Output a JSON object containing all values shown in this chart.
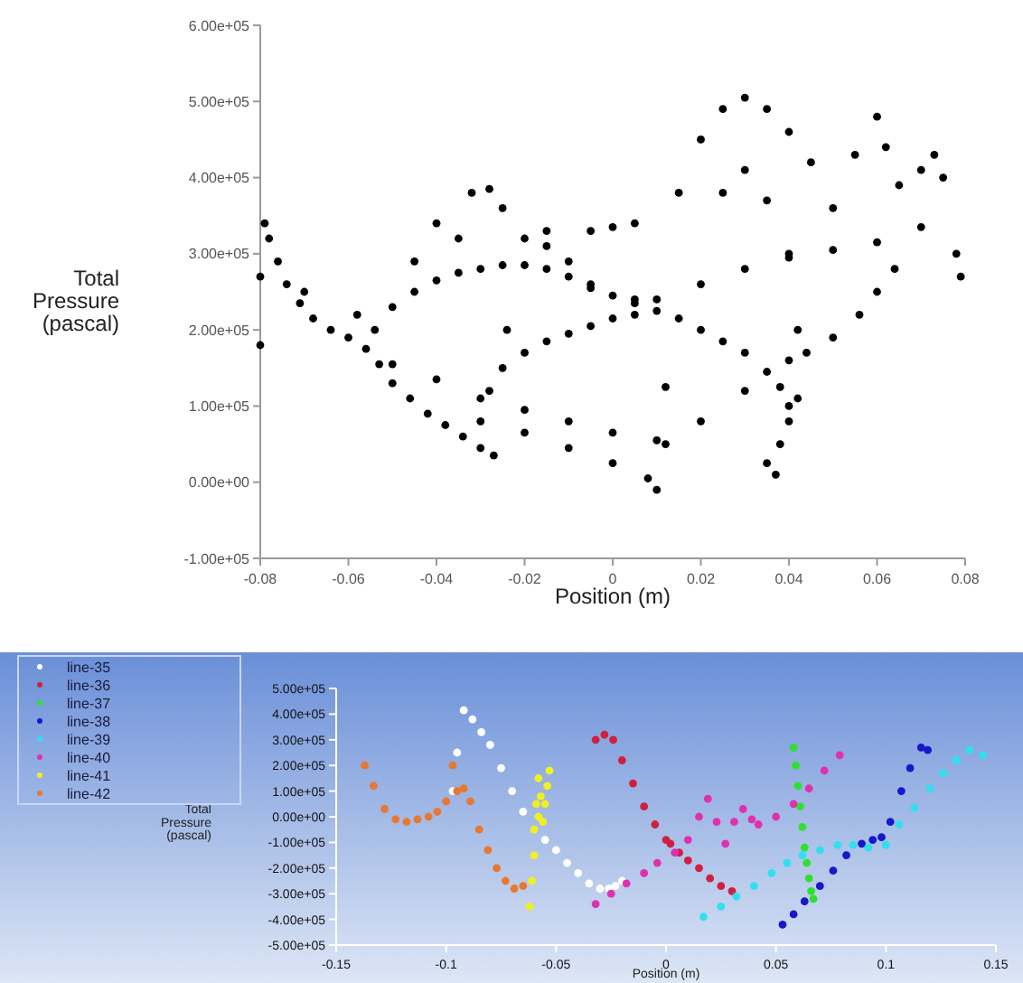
{
  "chart_data": [
    {
      "type": "scatter",
      "xlabel": "Position (m)",
      "ylabel": "Total Pressure (pascal)",
      "xlim": [
        -0.08,
        0.08
      ],
      "xticks": [
        -0.08,
        -0.06,
        -0.04,
        -0.02,
        0,
        0.02,
        0.04,
        0.06,
        0.08
      ],
      "ylim": [
        -100000,
        600000
      ],
      "yticks": [
        {
          "value": -100000,
          "label": "-1.00e+05"
        },
        {
          "value": 0,
          "label": "0.00e+00"
        },
        {
          "value": 100000,
          "label": "1.00e+05"
        },
        {
          "value": 200000,
          "label": "2.00e+05"
        },
        {
          "value": 300000,
          "label": "3.00e+05"
        },
        {
          "value": 400000,
          "label": "4.00e+05"
        },
        {
          "value": 500000,
          "label": "5.00e+05"
        },
        {
          "value": 600000,
          "label": "6.00e+05"
        }
      ],
      "grid": false,
      "legend": false,
      "marker": "circle",
      "series": [
        {
          "color": "#000000",
          "x": [
            -0.08,
            -0.08,
            -0.079,
            -0.078,
            -0.076,
            -0.074,
            -0.071,
            -0.068,
            -0.064,
            -0.06,
            -0.056,
            -0.053,
            -0.05,
            -0.046,
            -0.042,
            -0.038,
            -0.034,
            -0.03,
            -0.027,
            -0.054,
            -0.05,
            -0.045,
            -0.04,
            -0.035,
            -0.03,
            -0.025,
            -0.02,
            -0.015,
            -0.01,
            -0.005,
            0,
            0.005,
            0.01,
            0.015,
            0.02,
            0.025,
            0.03,
            0.035,
            0.038,
            0.04,
            0.04,
            0.038,
            0.037,
            -0.05,
            -0.04,
            -0.03,
            -0.02,
            -0.01,
            0,
            0.01,
            0.012,
            -0.02,
            -0.01,
            0,
            0.008,
            0.01,
            -0.03,
            -0.028,
            -0.025,
            -0.02,
            -0.015,
            -0.01,
            -0.005,
            0,
            0.005,
            0.02,
            0.03,
            0.04,
            0.05,
            0.056,
            0.06,
            0.064,
            0.01,
            0.02,
            0.03,
            0.04,
            0.05,
            0.06,
            0.07,
            0.015,
            0.02,
            0.025,
            0.03,
            0.035,
            0.04,
            0.045,
            0.05,
            0.055,
            0.06,
            0.062,
            0.065,
            0.07,
            0.073,
            0.075,
            0.078,
            0.079,
            0.025,
            0.03,
            0.035,
            0.04,
            0.042,
            0.044,
            -0.045,
            -0.04,
            -0.035,
            -0.032,
            -0.028,
            -0.025,
            -0.02,
            -0.015,
            -0.01,
            -0.005,
            0.005,
            -0.015,
            -0.005,
            0,
            0.005,
            -0.024,
            0.012,
            0.035,
            0.042,
            -0.058,
            -0.07
          ],
          "values": [
            180000,
            270000,
            340000,
            320000,
            290000,
            260000,
            235000,
            215000,
            200000,
            190000,
            175000,
            155000,
            130000,
            110000,
            90000,
            75000,
            60000,
            45000,
            35000,
            200000,
            230000,
            250000,
            265000,
            275000,
            280000,
            285000,
            285000,
            280000,
            270000,
            255000,
            245000,
            235000,
            225000,
            215000,
            200000,
            185000,
            170000,
            145000,
            125000,
            100000,
            80000,
            50000,
            10000,
            155000,
            135000,
            110000,
            95000,
            80000,
            65000,
            55000,
            50000,
            65000,
            45000,
            25000,
            5000,
            -10000,
            80000,
            120000,
            150000,
            170000,
            185000,
            195000,
            205000,
            215000,
            220000,
            80000,
            120000,
            160000,
            190000,
            220000,
            250000,
            280000,
            240000,
            260000,
            280000,
            295000,
            305000,
            315000,
            335000,
            380000,
            450000,
            490000,
            505000,
            490000,
            460000,
            420000,
            360000,
            430000,
            480000,
            440000,
            390000,
            410000,
            430000,
            400000,
            300000,
            270000,
            380000,
            410000,
            370000,
            300000,
            200000,
            170000,
            290000,
            340000,
            320000,
            380000,
            385000,
            360000,
            320000,
            310000,
            290000,
            260000,
            240000,
            330000,
            330000,
            335000,
            340000,
            200000,
            125000,
            25000,
            110000,
            220000,
            250000
          ]
        }
      ]
    },
    {
      "type": "scatter",
      "xlabel": "Position (m)",
      "ylabel": "Total Pressure (pascal)",
      "xlim": [
        -0.15,
        0.15
      ],
      "xticks": [
        -0.15,
        -0.1,
        -0.05,
        0,
        0.05,
        0.1,
        0.15
      ],
      "ylim": [
        -500000,
        500000
      ],
      "yticks": [
        {
          "value": -500000,
          "label": "-5.00e+05"
        },
        {
          "value": -400000,
          "label": "-4.00e+05"
        },
        {
          "value": -300000,
          "label": "-3.00e+05"
        },
        {
          "value": -200000,
          "label": "-2.00e+05"
        },
        {
          "value": -100000,
          "label": "-1.00e+05"
        },
        {
          "value": 0,
          "label": "0.00e+00"
        },
        {
          "value": 100000,
          "label": "1.00e+05"
        },
        {
          "value": 200000,
          "label": "2.00e+05"
        },
        {
          "value": 300000,
          "label": "3.00e+05"
        },
        {
          "value": 400000,
          "label": "4.00e+05"
        },
        {
          "value": 500000,
          "label": "5.00e+05"
        }
      ],
      "grid": false,
      "legend": "top left",
      "marker": "circle",
      "series": [
        {
          "name": "line-35",
          "color": "#ffffff",
          "x": [
            -0.097,
            -0.095,
            -0.092,
            -0.088,
            -0.084,
            -0.08,
            -0.075,
            -0.07,
            -0.065,
            -0.06,
            -0.055,
            -0.05,
            -0.045,
            -0.04,
            -0.035,
            -0.03,
            -0.026,
            -0.023,
            -0.02
          ],
          "values": [
            100000,
            250000,
            415000,
            380000,
            330000,
            280000,
            190000,
            100000,
            20000,
            null,
            -90000,
            -130000,
            -180000,
            -220000,
            -260000,
            -280000,
            -280000,
            -270000,
            -250000
          ]
        },
        {
          "name": "line-36",
          "color": "#d02040",
          "x": [
            -0.032,
            -0.028,
            -0.024,
            -0.02,
            -0.015,
            -0.01,
            -0.005,
            0,
            0.002,
            0.006,
            0.01,
            0.015,
            0.02,
            0.025,
            0.03
          ],
          "values": [
            300000,
            320000,
            300000,
            220000,
            130000,
            40000,
            -30000,
            -90000,
            -105000,
            -140000,
            -170000,
            -200000,
            -240000,
            -270000,
            -290000
          ]
        },
        {
          "name": "line-37",
          "color": "#30e030",
          "x": [
            0.058,
            0.059,
            0.06,
            0.061,
            0.062,
            0.063,
            0.064,
            0.065,
            0.066,
            0.067
          ],
          "values": [
            270000,
            200000,
            120000,
            40000,
            -40000,
            -120000,
            -180000,
            -240000,
            -290000,
            -320000
          ]
        },
        {
          "name": "line-38",
          "color": "#1818c8",
          "x": [
            0.053,
            0.058,
            0.063,
            0.07,
            0.076,
            0.082,
            0.089,
            0.094,
            0.098,
            0.102,
            0.107,
            0.111,
            0.116,
            0.119
          ],
          "values": [
            -420000,
            -380000,
            -330000,
            -270000,
            -210000,
            -150000,
            -105000,
            -90000,
            -80000,
            -20000,
            100000,
            190000,
            270000,
            260000
          ]
        },
        {
          "name": "line-39",
          "color": "#30e0f0",
          "x": [
            0.017,
            0.025,
            0.032,
            0.04,
            0.048,
            0.055,
            0.062,
            0.07,
            0.078,
            0.085,
            0.092,
            0.1,
            0.106,
            0.113,
            0.12,
            0.126,
            0.132,
            0.138,
            0.144
          ],
          "values": [
            -390000,
            -350000,
            -310000,
            -270000,
            -220000,
            -180000,
            -150000,
            -130000,
            -110000,
            -110000,
            -120000,
            -110000,
            -30000,
            35000,
            110000,
            170000,
            220000,
            260000,
            240000
          ]
        },
        {
          "name": "line-40",
          "color": "#e030b0",
          "x": [
            -0.032,
            -0.025,
            -0.018,
            -0.01,
            -0.004,
            0.004,
            0.01,
            0.015,
            0.019,
            0.023,
            0.027,
            0.031,
            0.035,
            0.039,
            0.042,
            0.05,
            0.058,
            0.065,
            0.072,
            0.079
          ],
          "values": [
            -340000,
            -300000,
            -260000,
            -220000,
            -180000,
            -140000,
            -90000,
            0,
            70000,
            -20000,
            -105000,
            -20000,
            30000,
            -10000,
            -30000,
            0,
            50000,
            110000,
            180000,
            240000
          ]
        },
        {
          "name": "line-41",
          "color": "#f0f020",
          "x": [
            -0.062,
            -0.061,
            -0.06,
            -0.06,
            -0.059,
            -0.058,
            -0.058,
            -0.057,
            -0.056,
            -0.055,
            -0.054,
            -0.053
          ],
          "values": [
            -350000,
            -250000,
            -150000,
            -50000,
            50000,
            150000,
            0,
            80000,
            -20000,
            50000,
            120000,
            180000
          ]
        },
        {
          "name": "line-42",
          "color": "#e87830",
          "x": [
            -0.137,
            -0.133,
            -0.128,
            -0.123,
            -0.118,
            -0.113,
            -0.108,
            -0.104,
            -0.1,
            -0.097,
            -0.095,
            -0.092,
            -0.089,
            -0.085,
            -0.081,
            -0.077,
            -0.073,
            -0.069,
            -0.065
          ],
          "values": [
            200000,
            120000,
            30000,
            -10000,
            -20000,
            -10000,
            0,
            20000,
            60000,
            200000,
            100000,
            110000,
            60000,
            -50000,
            -130000,
            -200000,
            -250000,
            -280000,
            -270000
          ]
        }
      ]
    }
  ]
}
